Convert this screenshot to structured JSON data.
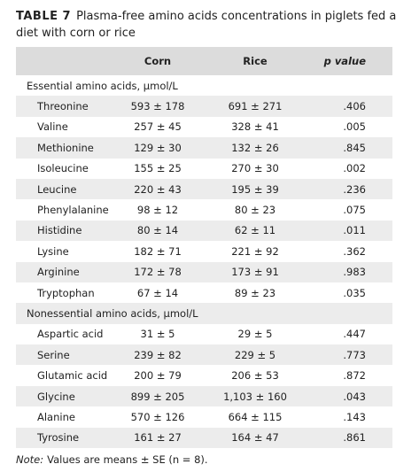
{
  "title": {
    "label": "TABLE 7",
    "text": "Plasma-free amino acids concentrations in piglets fed a diet with corn or rice"
  },
  "table": {
    "columns": [
      "Corn",
      "Rice",
      "p value"
    ],
    "sections": [
      {
        "label": "Essential amino acids, μmol/L",
        "rows": [
          [
            "Threonine",
            "593 ± 178",
            "691 ± 271",
            ".406"
          ],
          [
            "Valine",
            "257 ± 45",
            "328 ± 41",
            ".005"
          ],
          [
            "Methionine",
            "129 ± 30",
            "132 ± 26",
            ".845"
          ],
          [
            "Isoleucine",
            "155 ± 25",
            "270 ± 30",
            ".002"
          ],
          [
            "Leucine",
            "220 ± 43",
            "195 ± 39",
            ".236"
          ],
          [
            "Phenylalanine",
            "98 ± 12",
            "80 ± 23",
            ".075"
          ],
          [
            "Histidine",
            "80 ± 14",
            "62 ± 11",
            ".011"
          ],
          [
            "Lysine",
            "182 ± 71",
            "221 ± 92",
            ".362"
          ],
          [
            "Arginine",
            "172 ± 78",
            "173 ± 91",
            ".983"
          ],
          [
            "Tryptophan",
            "67 ± 14",
            "89 ± 23",
            ".035"
          ]
        ]
      },
      {
        "label": "Nonessential amino acids, μmol/L",
        "rows": [
          [
            "Aspartic acid",
            "31 ± 5",
            "29 ± 5",
            ".447"
          ],
          [
            "Serine",
            "239 ± 82",
            "229 ± 5",
            ".773"
          ],
          [
            "Glutamic acid",
            "200 ± 79",
            "206 ± 53",
            ".872"
          ],
          [
            "Glycine",
            "899 ± 205",
            "1,103 ± 160",
            ".043"
          ],
          [
            "Alanine",
            "570 ± 126",
            "664 ± 115",
            ".143"
          ],
          [
            "Tyrosine",
            "161 ± 27",
            "164 ± 47",
            ".861"
          ]
        ]
      }
    ]
  },
  "note": {
    "label": "Note:",
    "text": "Values are means ± SE (n = 8)."
  }
}
